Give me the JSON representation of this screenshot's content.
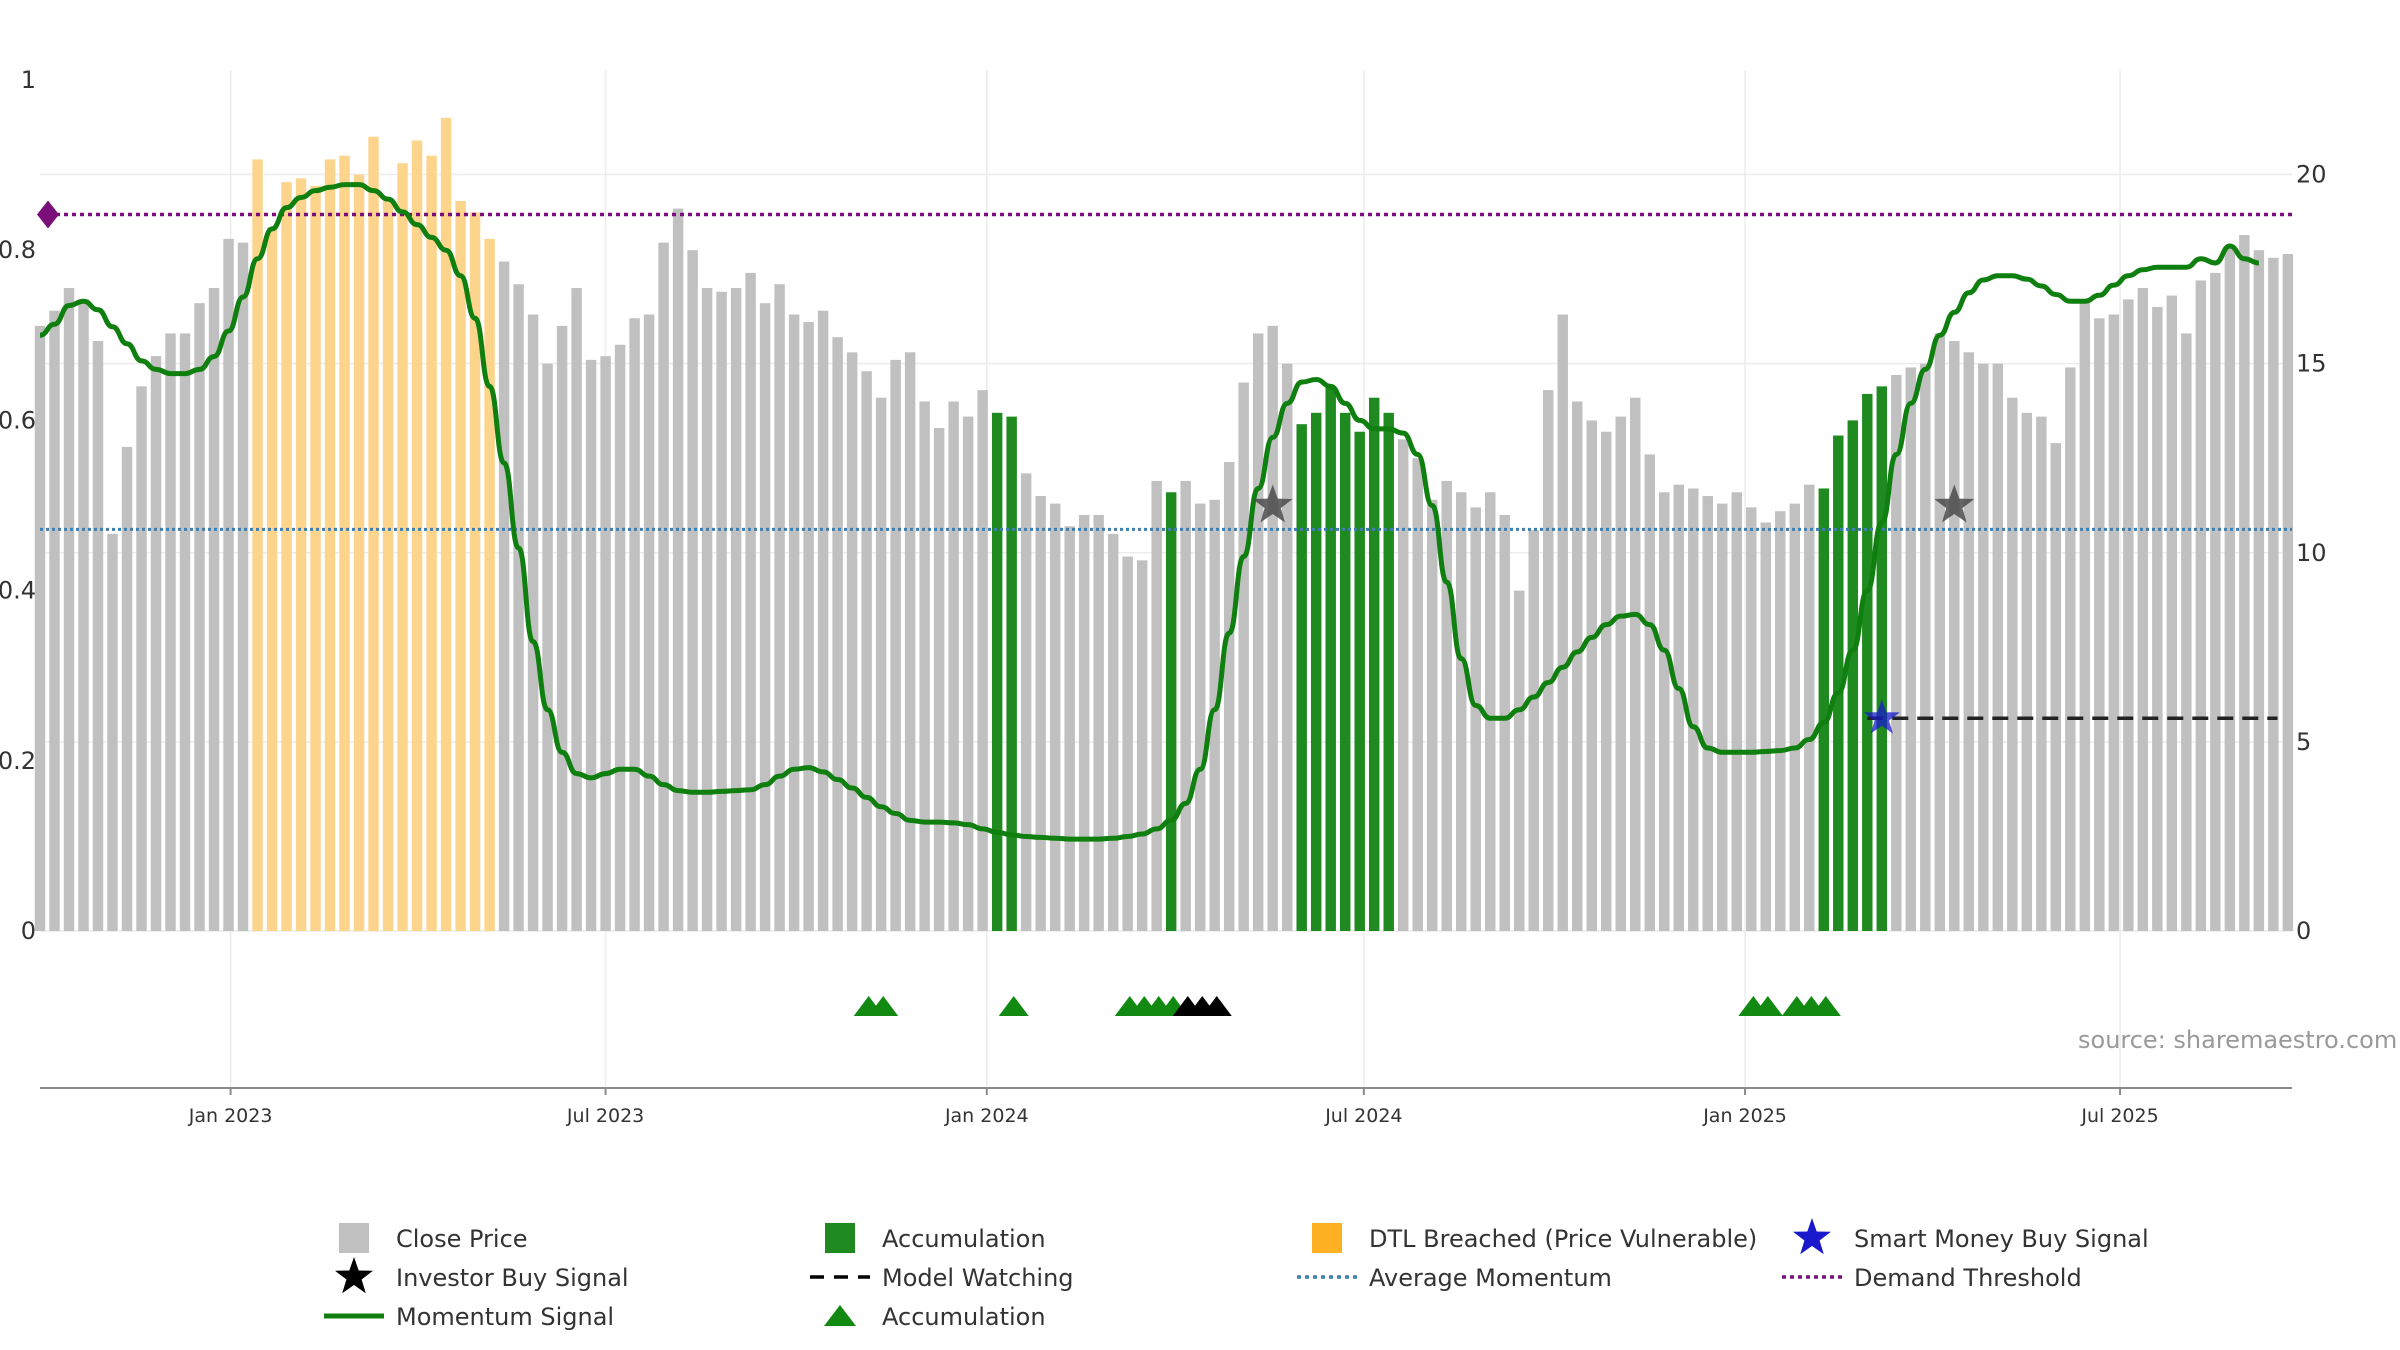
{
  "chart_data": {
    "type": "bar",
    "source": "source: sharemaestro.com",
    "left_axis": {
      "ticks": [
        0,
        0.2,
        0.4,
        0.6,
        0.8,
        1
      ],
      "tick_labels": [
        "0",
        "0.2",
        "0.4",
        "0.6",
        "0.8",
        "1"
      ],
      "range": [
        0,
        1
      ]
    },
    "right_axis": {
      "ticks": [
        0,
        5,
        10,
        15,
        20
      ],
      "tick_labels": [
        "0",
        "5",
        "10",
        "15",
        "20"
      ],
      "range": [
        0,
        22.5
      ]
    },
    "x_axis": {
      "start": "2022-10-01",
      "end": "2025-09-22",
      "ticks": [
        {
          "date": "2023-01-01",
          "label": "Jan 2023"
        },
        {
          "date": "2023-07-01",
          "label": "Jul 2023"
        },
        {
          "date": "2024-01-01",
          "label": "Jan 2024"
        },
        {
          "date": "2024-07-01",
          "label": "Jul 2024"
        },
        {
          "date": "2025-01-01",
          "label": "Jan 2025"
        },
        {
          "date": "2025-07-01",
          "label": "Jul 2025"
        }
      ]
    },
    "grid": true,
    "legend_placement": "bottom",
    "colors": {
      "close": "#c0c0c0",
      "accumulation": "#1f8a1f",
      "dtl": "#fdd48c",
      "momentum": "#0f7f0f",
      "average": "#3f7fb0",
      "demand": "#7a0f7a",
      "smart": "#1a1acc",
      "investor": "#4a4a4a",
      "watching": "#222222",
      "triangle_green": "#128a12",
      "triangle_black": "#000000"
    },
    "close_price": {
      "start": "2022-10-01",
      "interval_days": 7,
      "values": [
        16.0,
        16.4,
        17.0,
        16.7,
        15.6,
        10.5,
        12.8,
        14.4,
        15.2,
        15.8,
        15.8,
        16.6,
        17.0,
        18.3,
        18.2,
        20.4,
        18.6,
        19.8,
        19.9,
        19.7,
        20.4,
        20.5,
        20.0,
        21.0,
        19.3,
        20.3,
        20.9,
        20.5,
        21.5,
        19.3,
        19.0,
        18.3,
        17.7,
        17.1,
        16.3,
        15.0,
        16.0,
        17.0,
        15.1,
        15.2,
        15.5,
        16.2,
        16.3,
        18.2,
        19.1,
        18.0,
        17.0,
        16.9,
        17.0,
        17.4,
        16.6,
        17.1,
        16.3,
        16.1,
        16.4,
        15.7,
        15.3,
        14.8,
        14.1,
        15.1,
        15.3,
        14.0,
        13.3,
        14.0,
        13.6,
        14.3,
        13.7,
        13.6,
        12.1,
        11.5,
        11.3,
        10.7,
        11.0,
        11.0,
        10.5,
        9.9,
        9.8,
        11.9,
        11.6,
        11.9,
        11.3,
        11.4,
        12.4,
        14.5,
        15.8,
        16.0,
        15.0,
        13.4,
        13.7,
        14.4,
        13.7,
        13.2,
        14.1,
        13.7,
        13.0,
        12.5,
        11.4,
        11.9,
        11.6,
        11.2,
        11.6,
        11.0,
        9.0,
        10.6,
        14.3,
        16.3,
        14.0,
        13.5,
        13.2,
        13.6,
        14.1,
        12.6,
        11.6,
        11.8,
        11.7,
        11.5,
        11.3,
        11.6,
        11.2,
        10.8,
        11.1,
        11.3,
        11.8,
        11.7,
        13.1,
        13.5,
        14.2,
        14.4,
        14.7,
        14.9,
        15.0,
        15.8,
        15.6,
        15.3,
        15.0,
        15.0,
        14.1,
        13.7,
        13.6,
        12.9,
        14.9,
        16.7,
        16.2,
        16.3,
        16.7,
        17.0,
        16.5,
        16.8,
        15.8,
        17.2,
        17.4,
        18.1,
        18.4,
        18.0,
        17.8,
        17.9
      ]
    },
    "accumulation_bar_index": [
      66,
      67,
      78,
      87,
      88,
      89,
      90,
      91,
      92,
      93,
      123,
      124,
      125,
      126,
      127
    ],
    "dtl_bar_index": [
      15,
      16,
      17,
      18,
      19,
      20,
      21,
      22,
      23,
      24,
      25,
      26,
      27,
      28,
      29,
      30,
      31
    ],
    "momentum_signal": {
      "start": "2022-10-01",
      "interval_days": 7,
      "values": [
        0.7,
        0.713,
        0.735,
        0.74,
        0.73,
        0.71,
        0.69,
        0.67,
        0.66,
        0.655,
        0.655,
        0.66,
        0.675,
        0.705,
        0.745,
        0.79,
        0.825,
        0.85,
        0.862,
        0.87,
        0.874,
        0.877,
        0.877,
        0.87,
        0.86,
        0.845,
        0.83,
        0.815,
        0.8,
        0.77,
        0.72,
        0.64,
        0.55,
        0.45,
        0.34,
        0.26,
        0.21,
        0.185,
        0.18,
        0.185,
        0.19,
        0.19,
        0.182,
        0.172,
        0.165,
        0.163,
        0.163,
        0.164,
        0.165,
        0.166,
        0.172,
        0.182,
        0.19,
        0.192,
        0.187,
        0.178,
        0.168,
        0.157,
        0.146,
        0.138,
        0.13,
        0.128,
        0.128,
        0.127,
        0.125,
        0.12,
        0.116,
        0.113,
        0.111,
        0.11,
        0.109,
        0.108,
        0.108,
        0.108,
        0.109,
        0.111,
        0.114,
        0.12,
        0.13,
        0.15,
        0.19,
        0.26,
        0.35,
        0.44,
        0.52,
        0.58,
        0.62,
        0.645,
        0.648,
        0.64,
        0.62,
        0.6,
        0.59,
        0.59,
        0.585,
        0.56,
        0.5,
        0.41,
        0.32,
        0.265,
        0.25,
        0.25,
        0.26,
        0.275,
        0.292,
        0.31,
        0.328,
        0.345,
        0.36,
        0.37,
        0.372,
        0.36,
        0.33,
        0.285,
        0.24,
        0.215,
        0.21,
        0.21,
        0.21,
        0.211,
        0.212,
        0.215,
        0.225,
        0.245,
        0.28,
        0.33,
        0.4,
        0.48,
        0.56,
        0.62,
        0.66,
        0.7,
        0.727,
        0.75,
        0.765,
        0.77,
        0.77,
        0.766,
        0.758,
        0.748,
        0.74,
        0.74,
        0.747,
        0.759,
        0.77,
        0.777,
        0.78,
        0.78,
        0.78,
        0.79,
        0.785,
        0.805,
        0.79,
        0.785
      ]
    },
    "average_momentum": 0.472,
    "demand_threshold": 0.842,
    "model_watching": {
      "value": 0.25,
      "start": "2025-03-01",
      "end": "2025-09-15"
    },
    "investor_buy_signals": [
      {
        "date": "2024-05-18",
        "value": 0.5
      },
      {
        "date": "2025-04-12",
        "value": 0.5
      }
    ],
    "smart_money_buy_signals": [
      {
        "date": "2025-03-08",
        "value": 0.25
      }
    ],
    "accumulation_markers": [
      {
        "date": "2023-11-05",
        "color": "green"
      },
      {
        "date": "2023-11-12",
        "color": "green"
      },
      {
        "date": "2024-01-14",
        "color": "green"
      },
      {
        "date": "2024-03-10",
        "color": "green"
      },
      {
        "date": "2024-03-17",
        "color": "green"
      },
      {
        "date": "2024-03-24",
        "color": "green"
      },
      {
        "date": "2024-03-31",
        "color": "green"
      },
      {
        "date": "2024-04-07",
        "color": "black"
      },
      {
        "date": "2024-04-14",
        "color": "black"
      },
      {
        "date": "2024-04-21",
        "color": "black"
      },
      {
        "date": "2025-01-05",
        "color": "green"
      },
      {
        "date": "2025-01-12",
        "color": "green"
      },
      {
        "date": "2025-01-26",
        "color": "green"
      },
      {
        "date": "2025-02-02",
        "color": "green"
      },
      {
        "date": "2025-02-09",
        "color": "green"
      }
    ],
    "legend": [
      {
        "label": "Close Price",
        "symbol": "square",
        "color": "#c0c0c0"
      },
      {
        "label": "Accumulation",
        "symbol": "square",
        "color": "#1f8a1f"
      },
      {
        "label": "DTL Breached (Price Vulnerable)",
        "symbol": "square",
        "color": "#fdb022"
      },
      {
        "label": "Smart Money Buy Signal",
        "symbol": "star",
        "color": "#1a1acc"
      },
      {
        "label": "Investor Buy Signal",
        "symbol": "star",
        "color": "#000000"
      },
      {
        "label": "Model Watching",
        "symbol": "dash",
        "color": "#000000"
      },
      {
        "label": "Average Momentum",
        "symbol": "dot",
        "color": "#3f7fb0"
      },
      {
        "label": "Demand Threshold",
        "symbol": "dot",
        "color": "#7a0f7a"
      },
      {
        "label": "Momentum Signal",
        "symbol": "line",
        "color": "#0f7f0f"
      },
      {
        "label": "Accumulation",
        "symbol": "triangle",
        "color": "#128a12"
      }
    ]
  }
}
